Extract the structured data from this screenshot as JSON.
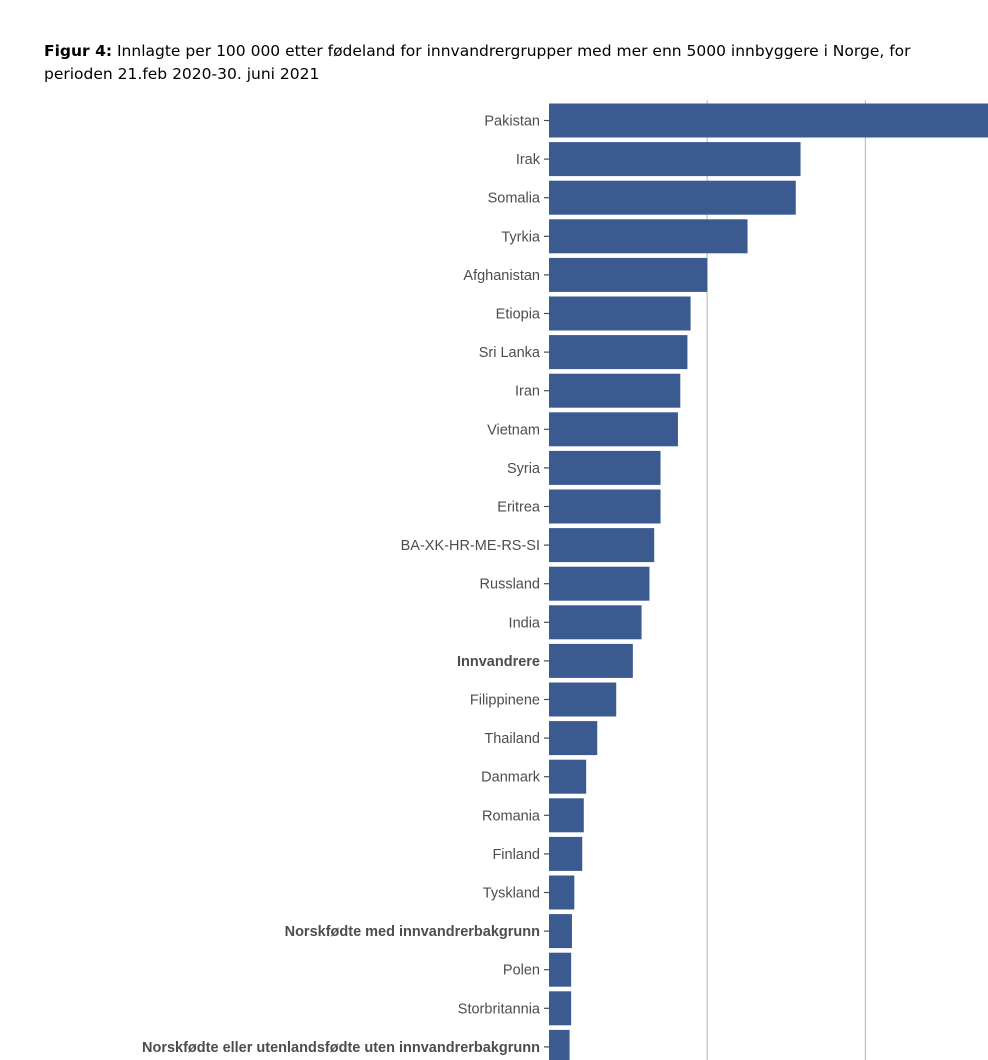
{
  "caption": {
    "prefix": "Figur 4:",
    "text": " Innlagte per 100 000 etter fødeland for innvandrergrupper med mer enn 5000 innbyggere i Norge, for perioden 21.feb 2020-30. juni 2021"
  },
  "chart_data": {
    "type": "bar",
    "orientation": "horizontal",
    "categories": [
      "Pakistan",
      "Irak",
      "Somalia",
      "Tyrkia",
      "Afghanistan",
      "Etiopia",
      "Sri Lanka",
      "Iran",
      "Vietnam",
      "Syria",
      "Eritrea",
      "BA-XK-HR-ME-RS-SI",
      "Russland",
      "India",
      "Innvandrere",
      "Filippinene",
      "Thailand",
      "Danmark",
      "Romania",
      "Finland",
      "Tyskland",
      "Norskfødte med innvandrerbakgrunn",
      "Polen",
      "Storbritannia",
      "Norskfødte eller utenlandsfødte uten innvandrerbakgrunn"
    ],
    "bold_categories": [
      "Innvandrere",
      "Norskfødte med innvandrerbakgrunn",
      "Norskfødte eller utenlandsfødte uten innvandrerbakgrunn"
    ],
    "values": [
      555,
      318,
      312,
      251,
      200,
      179,
      175,
      166,
      163,
      141,
      141,
      133,
      127,
      117,
      106,
      85,
      61,
      47,
      44,
      42,
      32,
      29,
      28,
      28,
      26
    ],
    "xlim": [
      0,
      555
    ],
    "gridlines": [
      200,
      400
    ],
    "bar_color": "#3b5a8f",
    "grid_color": "#c0c0c0",
    "tick_color": "#4d4d4d"
  }
}
